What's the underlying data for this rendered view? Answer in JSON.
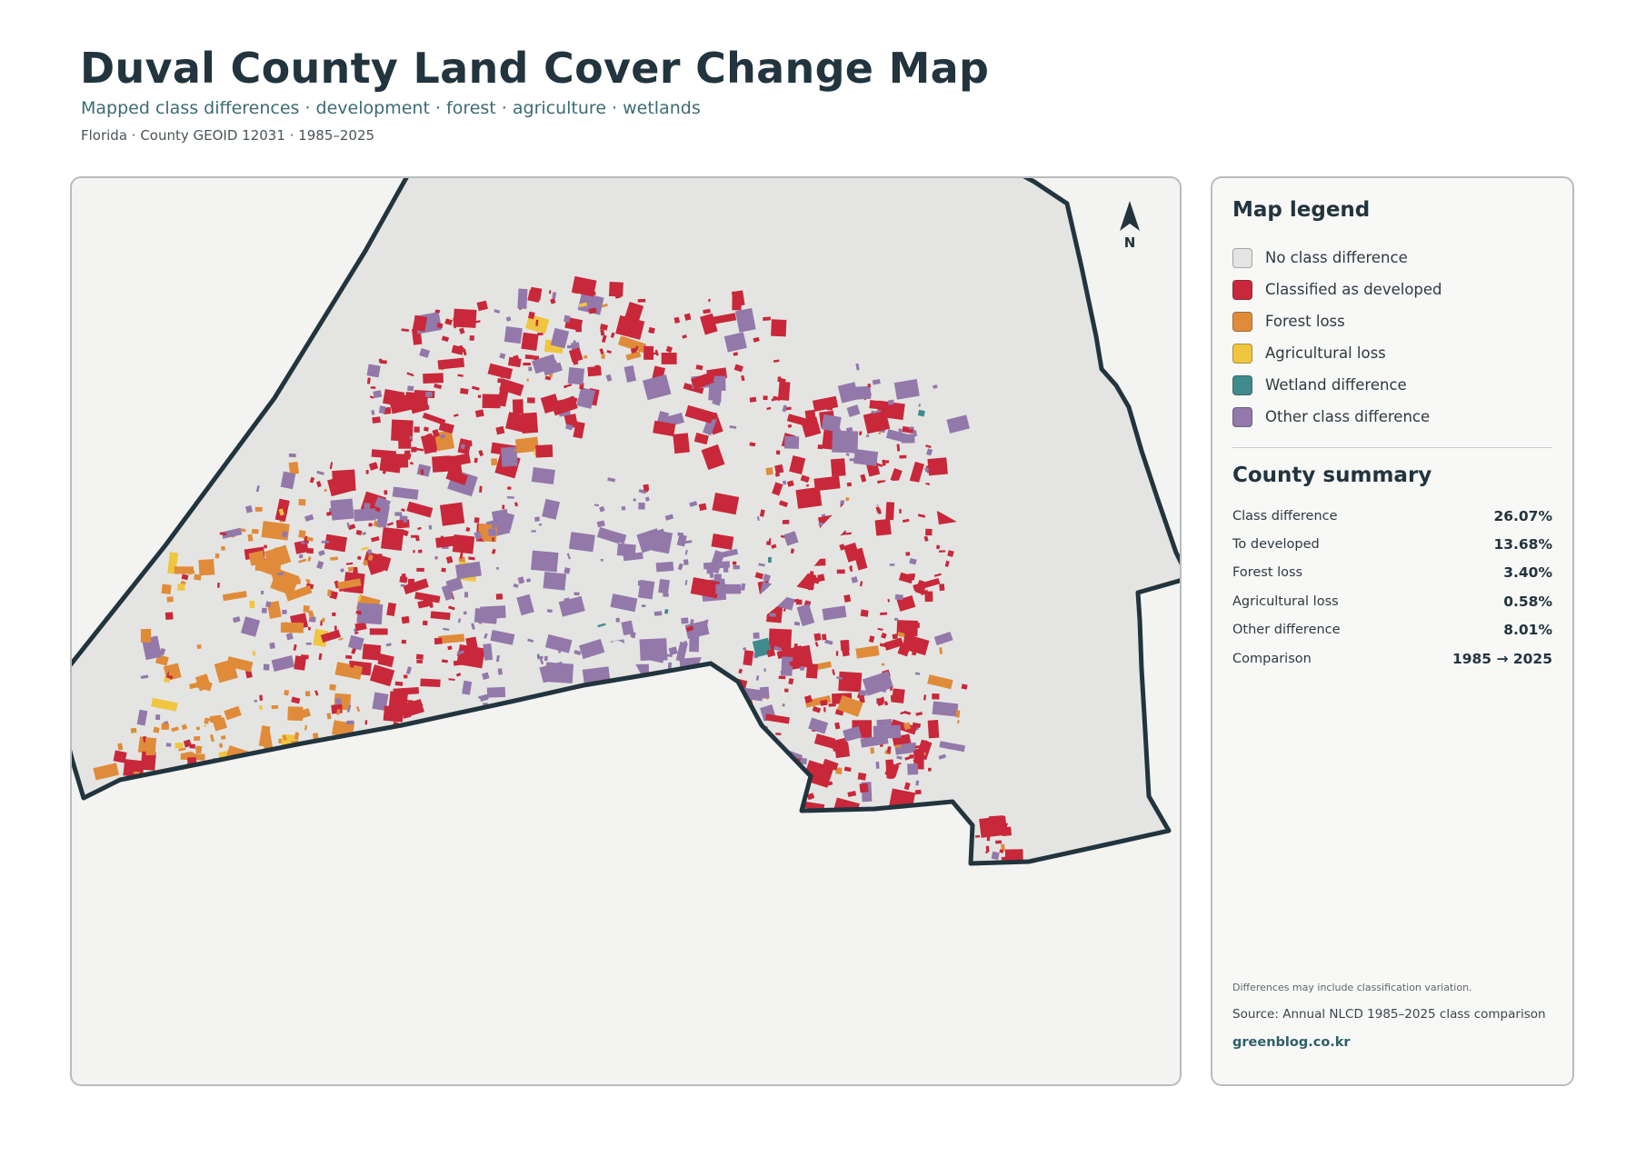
{
  "header": {
    "title": "Duval County Land Cover Change Map",
    "subtitle": "Mapped class differences · development · forest · agriculture · wetlands",
    "meta": "Florida · County GEOID 12031 · 1985–2025"
  },
  "map": {
    "north_label": "N",
    "colors": {
      "no_change": "#e4e5e2",
      "developed": "#c8283a",
      "forest": "#e08b3a",
      "agriculture": "#f0c540",
      "wetland": "#3f8a8d",
      "other": "#9378aa",
      "outline": "#22343e"
    }
  },
  "legend": {
    "title": "Map legend",
    "items": [
      {
        "label": "No class difference",
        "color": "#e4e5e2"
      },
      {
        "label": "Classified as developed",
        "color": "#c8283a"
      },
      {
        "label": "Forest loss",
        "color": "#e08b3a"
      },
      {
        "label": "Agricultural loss",
        "color": "#f0c540"
      },
      {
        "label": "Wetland difference",
        "color": "#3f8a8d"
      },
      {
        "label": "Other class difference",
        "color": "#9378aa"
      }
    ]
  },
  "summary": {
    "title": "County summary",
    "rows": [
      {
        "label": "Class difference",
        "value": "26.07%"
      },
      {
        "label": "To developed",
        "value": "13.68%"
      },
      {
        "label": "Forest loss",
        "value": "3.40%"
      },
      {
        "label": "Agricultural loss",
        "value": "0.58%"
      },
      {
        "label": "Other difference",
        "value": "8.01%"
      },
      {
        "label": "Comparison",
        "value": "1985 → 2025"
      }
    ]
  },
  "footer": {
    "note": "Differences may include classification variation.",
    "source": "Source: Annual NLCD 1985–2025 class comparison",
    "site": "greenblog.co.kr"
  }
}
